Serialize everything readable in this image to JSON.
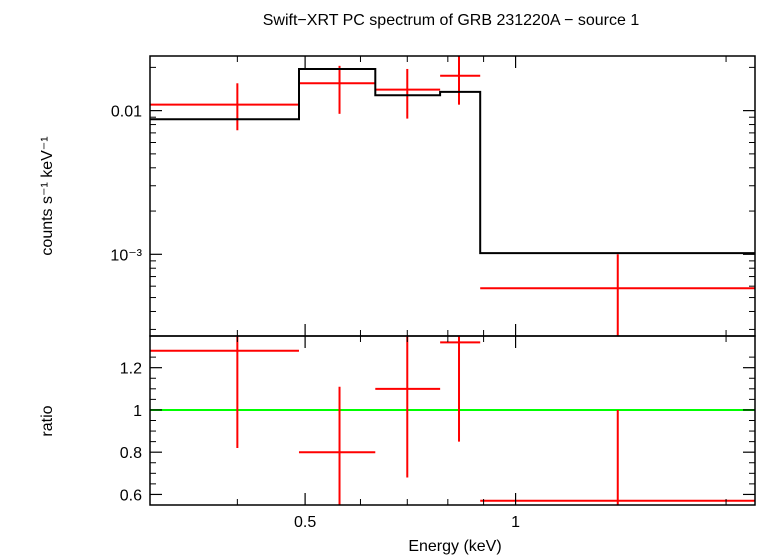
{
  "chart_data": {
    "type": "scatter",
    "title": "Swift−XRT PC spectrum of GRB 231220A − source 1",
    "xlabel": "Energy (keV)",
    "xscale": "log",
    "xlim": [
      0.3,
      2.2
    ],
    "x_ticks": [
      {
        "value": 0.5,
        "label": "0.5"
      },
      {
        "value": 1,
        "label": "1"
      }
    ],
    "colors": {
      "data": "#ff0000",
      "model": "#000000",
      "unity": "#00ff00"
    },
    "panels": [
      {
        "name": "spectrum",
        "ylabel": "counts s⁻¹ keV⁻¹",
        "yscale": "log",
        "ylim": [
          0.00027,
          0.024
        ],
        "y_ticks": [
          {
            "value": 0.01,
            "label": "0.01"
          },
          {
            "value": 0.001,
            "label": "10⁻³"
          }
        ],
        "series": [
          {
            "kind": "data",
            "points": [
              {
                "x": 0.4,
                "xlo": 0.3,
                "xhi": 0.49,
                "y": 0.011,
                "ylo": 0.0073,
                "yhi": 0.0155
              },
              {
                "x": 0.56,
                "xlo": 0.49,
                "xhi": 0.63,
                "y": 0.0155,
                "ylo": 0.0095,
                "yhi": 0.0205
              },
              {
                "x": 0.7,
                "xlo": 0.63,
                "xhi": 0.78,
                "y": 0.014,
                "ylo": 0.0088,
                "yhi": 0.0195
              },
              {
                "x": 0.83,
                "xlo": 0.78,
                "xhi": 0.89,
                "y": 0.0175,
                "ylo": 0.011,
                "yhi": 0.024
              },
              {
                "x": 1.4,
                "xlo": 0.89,
                "xhi": 2.2,
                "y": 0.00058,
                "ylo": 0.00027,
                "yhi": 0.001
              }
            ]
          },
          {
            "kind": "model",
            "steps": [
              {
                "xlo": 0.3,
                "xhi": 0.49,
                "y": 0.0087
              },
              {
                "xlo": 0.49,
                "xhi": 0.63,
                "y": 0.0195
              },
              {
                "xlo": 0.63,
                "xhi": 0.78,
                "y": 0.0128
              },
              {
                "xlo": 0.78,
                "xhi": 0.89,
                "y": 0.0135
              },
              {
                "xlo": 0.89,
                "xhi": 2.2,
                "y": 0.00102
              }
            ]
          }
        ]
      },
      {
        "name": "ratio",
        "ylabel": "ratio",
        "yscale": "linear",
        "ylim": [
          0.55,
          1.35
        ],
        "y_ticks": [
          {
            "value": 0.6,
            "label": "0.6"
          },
          {
            "value": 0.8,
            "label": "0.8"
          },
          {
            "value": 1,
            "label": "1"
          },
          {
            "value": 1.2,
            "label": "1.2"
          }
        ],
        "unity": 1,
        "series": [
          {
            "kind": "data",
            "points": [
              {
                "x": 0.4,
                "xlo": 0.3,
                "xhi": 0.49,
                "y": 1.28,
                "ylo": 0.82,
                "yhi": 1.35
              },
              {
                "x": 0.56,
                "xlo": 0.49,
                "xhi": 0.63,
                "y": 0.8,
                "ylo": 0.55,
                "yhi": 1.11
              },
              {
                "x": 0.7,
                "xlo": 0.63,
                "xhi": 0.78,
                "y": 1.1,
                "ylo": 0.68,
                "yhi": 1.35
              },
              {
                "x": 0.83,
                "xlo": 0.78,
                "xhi": 0.89,
                "y": 1.32,
                "ylo": 0.85,
                "yhi": 1.35
              },
              {
                "x": 1.4,
                "xlo": 0.89,
                "xhi": 2.2,
                "y": 0.57,
                "ylo": 0.55,
                "yhi": 1.0
              }
            ]
          }
        ]
      }
    ]
  }
}
